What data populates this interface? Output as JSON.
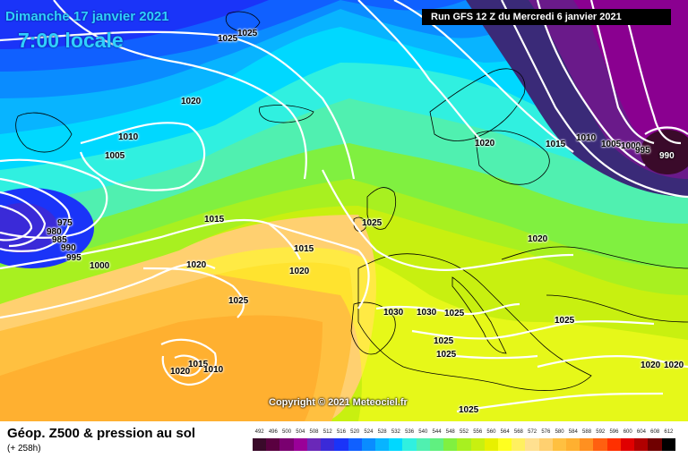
{
  "header": {
    "date": "Dimanche 17 janvier 2021",
    "time": "7:00 locale",
    "run": "Run GFS 12 Z du Mercredi 6 janvier 2021"
  },
  "copyright": "Copyright © 2021 Meteociel.fr",
  "footer": {
    "title": "Géop. Z500 & pression au sol",
    "subtitle": "(+ 258h)"
  },
  "scale": {
    "values": [
      "492",
      "496",
      "500",
      "504",
      "508",
      "512",
      "516",
      "520",
      "524",
      "528",
      "532",
      "536",
      "540",
      "544",
      "548",
      "552",
      "556",
      "560",
      "564",
      "568",
      "572",
      "576",
      "580",
      "584",
      "588",
      "592",
      "596",
      "600",
      "604",
      "608",
      "612"
    ],
    "colors": [
      "#3a0a2a",
      "#5a0040",
      "#7a0070",
      "#9a0098",
      "#6a28b8",
      "#3a2ad8",
      "#1a34f8",
      "#1060ff",
      "#0a8cff",
      "#08b4ff",
      "#00d8ff",
      "#30f0e0",
      "#50f0b0",
      "#60f080",
      "#80f040",
      "#a8f020",
      "#c8f010",
      "#e8f000",
      "#ffff20",
      "#fff060",
      "#ffe090",
      "#ffd070",
      "#ffc040",
      "#ffb030",
      "#ff9020",
      "#ff6010",
      "#ff3000",
      "#e00000",
      "#b00000",
      "#700000",
      "#000000"
    ]
  },
  "isobars": [
    {
      "text": "1025"
    },
    {
      "text": "1025"
    },
    {
      "text": "1020"
    },
    {
      "text": "1010"
    },
    {
      "text": "1005"
    },
    {
      "text": "975"
    },
    {
      "text": "980"
    },
    {
      "text": "985"
    },
    {
      "text": "990"
    },
    {
      "text": "995"
    },
    {
      "text": "1000"
    },
    {
      "text": "1015"
    },
    {
      "text": "1020"
    },
    {
      "text": "1015"
    },
    {
      "text": "1020"
    },
    {
      "text": "1025"
    },
    {
      "text": "1015"
    },
    {
      "text": "1020"
    },
    {
      "text": "1010"
    },
    {
      "text": "1025"
    },
    {
      "text": "1030"
    },
    {
      "text": "1030"
    },
    {
      "text": "1025"
    },
    {
      "text": "1025"
    },
    {
      "text": "1025"
    },
    {
      "text": "1025"
    },
    {
      "text": "1020"
    },
    {
      "text": "1015"
    },
    {
      "text": "1010"
    },
    {
      "text": "1005"
    },
    {
      "text": "1000"
    },
    {
      "text": "995"
    },
    {
      "text": "990"
    },
    {
      "text": "1020"
    },
    {
      "text": "1025"
    },
    {
      "text": "1020"
    },
    {
      "text": "1020"
    },
    {
      "text": "1025"
    }
  ]
}
